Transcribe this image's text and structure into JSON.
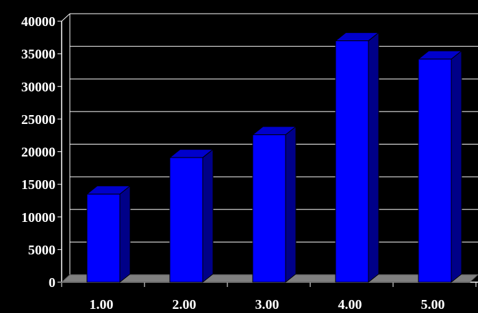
{
  "chart_data": {
    "type": "bar",
    "title": "",
    "xlabel": "",
    "ylabel": "",
    "categories": [
      "1.00",
      "2.00",
      "3.00",
      "4.00",
      "5.00"
    ],
    "values": [
      13500,
      19100,
      22600,
      37000,
      34200
    ],
    "ylim": [
      0,
      40000
    ],
    "y_ticks": [
      "0",
      "5000",
      "10000",
      "15000",
      "20000",
      "25000",
      "30000",
      "35000",
      "40000"
    ],
    "grid": true,
    "three_d": true,
    "colors": {
      "background": "#000000",
      "bar_front": "#0000ff",
      "bar_side": "#000088",
      "bar_top": "#0000cc",
      "floor": "#808080",
      "grid": "#ffffff",
      "text": "#ffffff"
    }
  }
}
